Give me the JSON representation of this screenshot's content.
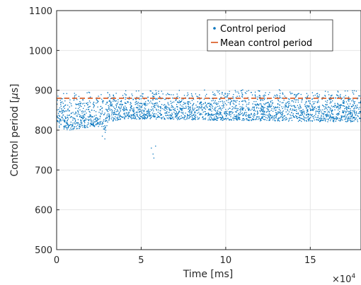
{
  "chart_data": {
    "type": "scatter",
    "xlabel": "Time [ms]",
    "ylabel": "Control period [",
    "ylabel_greek": "μ",
    "ylabel_unit": "s]",
    "x_exponent_base": "×10",
    "x_exponent_power": "4",
    "xlim": [
      0,
      180000
    ],
    "ylim": [
      500,
      1100
    ],
    "xticks": [
      0,
      50000,
      100000,
      150000
    ],
    "xtick_labels": [
      "0",
      "5",
      "10",
      "15"
    ],
    "yticks": [
      500,
      600,
      700,
      800,
      900,
      1000,
      1100
    ],
    "ytick_labels": [
      "500",
      "600",
      "700",
      "800",
      "900",
      "1000",
      "1100"
    ],
    "grid": true,
    "legend_position": "top-right",
    "series": [
      {
        "name": "Control period",
        "style": "points",
        "color": "#0072BD",
        "band_top": [
          [
            0,
            895
          ],
          [
            35000,
            900
          ],
          [
            50000,
            903
          ],
          [
            180000,
            903
          ]
        ],
        "band_bottom": [
          [
            0,
            805
          ],
          [
            8000,
            800
          ],
          [
            26000,
            810
          ],
          [
            29000,
            790
          ],
          [
            30000,
            820
          ],
          [
            40000,
            828
          ],
          [
            180000,
            820
          ]
        ],
        "outliers": [
          [
            27000,
            785
          ],
          [
            28500,
            778
          ],
          [
            56000,
            755
          ],
          [
            57000,
            740
          ],
          [
            57500,
            730
          ],
          [
            58500,
            760
          ]
        ]
      },
      {
        "name": "Mean control period",
        "style": "dashed-line",
        "color": "#D95319",
        "x": [
          0,
          180000
        ],
        "values": [
          880,
          880
        ]
      }
    ]
  }
}
